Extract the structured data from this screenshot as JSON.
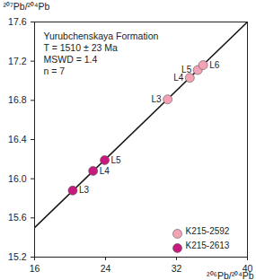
{
  "chart_data": {
    "type": "scatter",
    "y_label": "²⁰⁷Pb/²⁰⁴Pb",
    "x_label": "²⁰⁶Pb/²⁰⁴Pb",
    "annotation": [
      "Yurubchenskaya Formation",
      "T = 1510 ± 23 Ma",
      "MSWD = 1.4",
      "n = 7"
    ],
    "xlim": [
      16,
      40
    ],
    "xticks": [
      16,
      24,
      32,
      40
    ],
    "ylim": [
      15.2,
      17.6
    ],
    "yticks": [
      15.2,
      15.6,
      {
        "value": 16,
        "label": "16.0"
      },
      16.4,
      16.8,
      17.2,
      17.6
    ],
    "legend": "bottom-right",
    "series": [
      {
        "name": "K215-2592",
        "color": "#f4a3b6",
        "marker": "circle",
        "x": [
          31.0,
          33.5,
          34.4,
          35.0
        ],
        "values": [
          16.81,
          17.03,
          17.11,
          17.16
        ],
        "labels": [
          "L3",
          "L4",
          "L5",
          "L6"
        ]
      },
      {
        "name": "K215-2613",
        "color": "#c8197e",
        "marker": "circle",
        "x": [
          20.3,
          22.6,
          23.9
        ],
        "values": [
          15.88,
          16.08,
          16.19
        ],
        "labels": [
          "L3",
          "L4",
          "L5"
        ]
      }
    ],
    "isochron": {
      "x": [
        16,
        40
      ],
      "values": [
        15.5,
        17.6
      ],
      "color": "#1a1a1a",
      "line_style": "solid"
    }
  }
}
